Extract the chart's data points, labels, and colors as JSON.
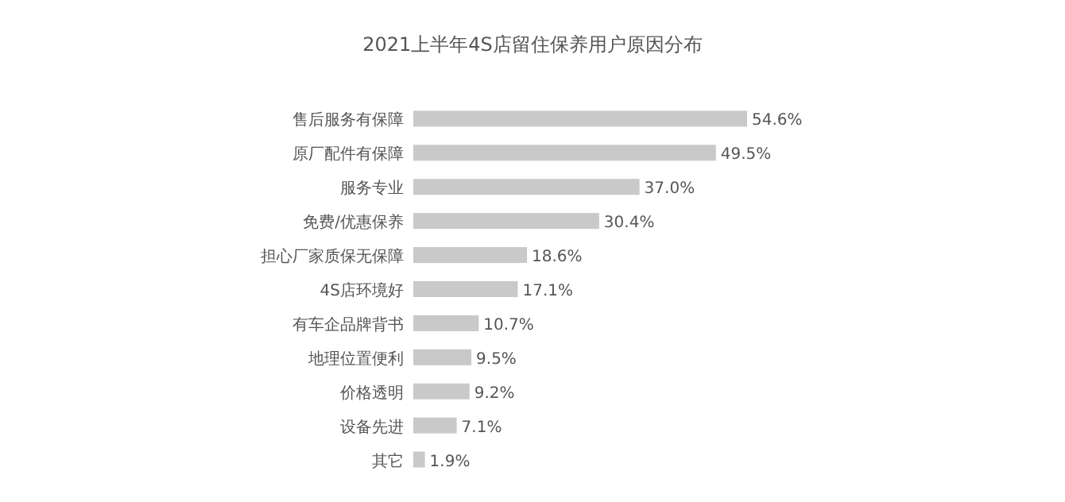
{
  "chart_data": {
    "type": "bar",
    "orientation": "horizontal",
    "title": "2021上半年4S店留住保养用户原因分布",
    "categories": [
      "售后服务有保障",
      "原厂配件有保障",
      "服务专业",
      "免费/优惠保养",
      "担心厂家质保无保障",
      "4S店环境好",
      "有车企品牌背书",
      "地理位置便利",
      "价格透明",
      "设备先进",
      "其它"
    ],
    "values": [
      54.6,
      49.5,
      37.0,
      30.4,
      18.6,
      17.1,
      10.7,
      9.5,
      9.2,
      7.1,
      1.9
    ],
    "value_labels": [
      "54.6%",
      "49.5%",
      "37.0%",
      "30.4%",
      "18.6%",
      "17.1%",
      "10.7%",
      "9.5%",
      "9.2%",
      "7.1%",
      "1.9%"
    ],
    "color": "#c9c9c9"
  }
}
